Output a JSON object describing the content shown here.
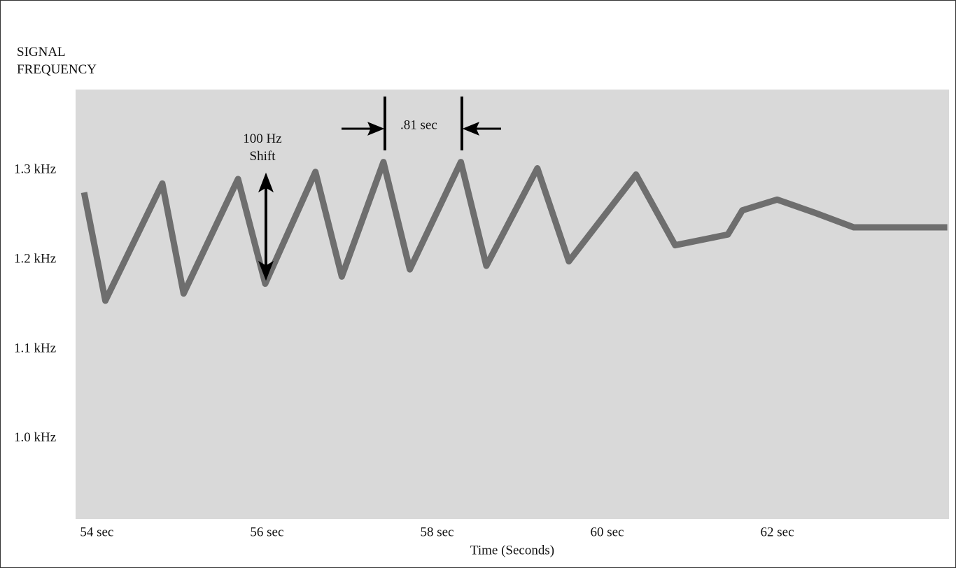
{
  "chart_data": {
    "type": "line",
    "y_label": "SIGNAL FREQUENCY",
    "x_label": "Time (Seconds)",
    "annotations": [
      "100 Hz Shift",
      ".81 sec"
    ],
    "x": [
      53.85,
      54.1,
      54.77,
      55.02,
      55.66,
      55.98,
      56.57,
      56.88,
      57.37,
      57.68,
      58.28,
      58.58,
      59.18,
      59.55,
      60.34,
      60.8,
      61.42,
      61.59,
      62.0,
      62.45,
      62.9,
      64.0
    ],
    "series": [
      {
        "color": "#6e6e6e",
        "values": [
          1.275,
          1.154,
          1.285,
          1.162,
          1.29,
          1.173,
          1.298,
          1.181,
          1.309,
          1.189,
          1.309,
          1.193,
          1.302,
          1.198,
          1.295,
          1.216,
          1.228,
          1.255,
          1.267,
          1.252,
          1.236,
          1.236
        ]
      }
    ],
    "xlim": [
      53.75,
      64.02
    ],
    "ylim": [
      0.91,
      1.39
    ],
    "xticks": [
      {
        "value": 54,
        "label": "54 sec"
      },
      {
        "value": 56,
        "label": "56 sec"
      },
      {
        "value": 58,
        "label": "58 sec"
      },
      {
        "value": 60,
        "label": "60 sec"
      },
      {
        "value": 62,
        "label": "62 sec"
      }
    ],
    "yticks": [
      {
        "value": 1.0,
        "label": "1.0 kHz"
      },
      {
        "value": 1.1,
        "label": "1.1 kHz"
      },
      {
        "value": 1.2,
        "label": "1.2 kHz"
      },
      {
        "value": 1.3,
        "label": "1.3 kHz"
      }
    ],
    "grid": false
  }
}
